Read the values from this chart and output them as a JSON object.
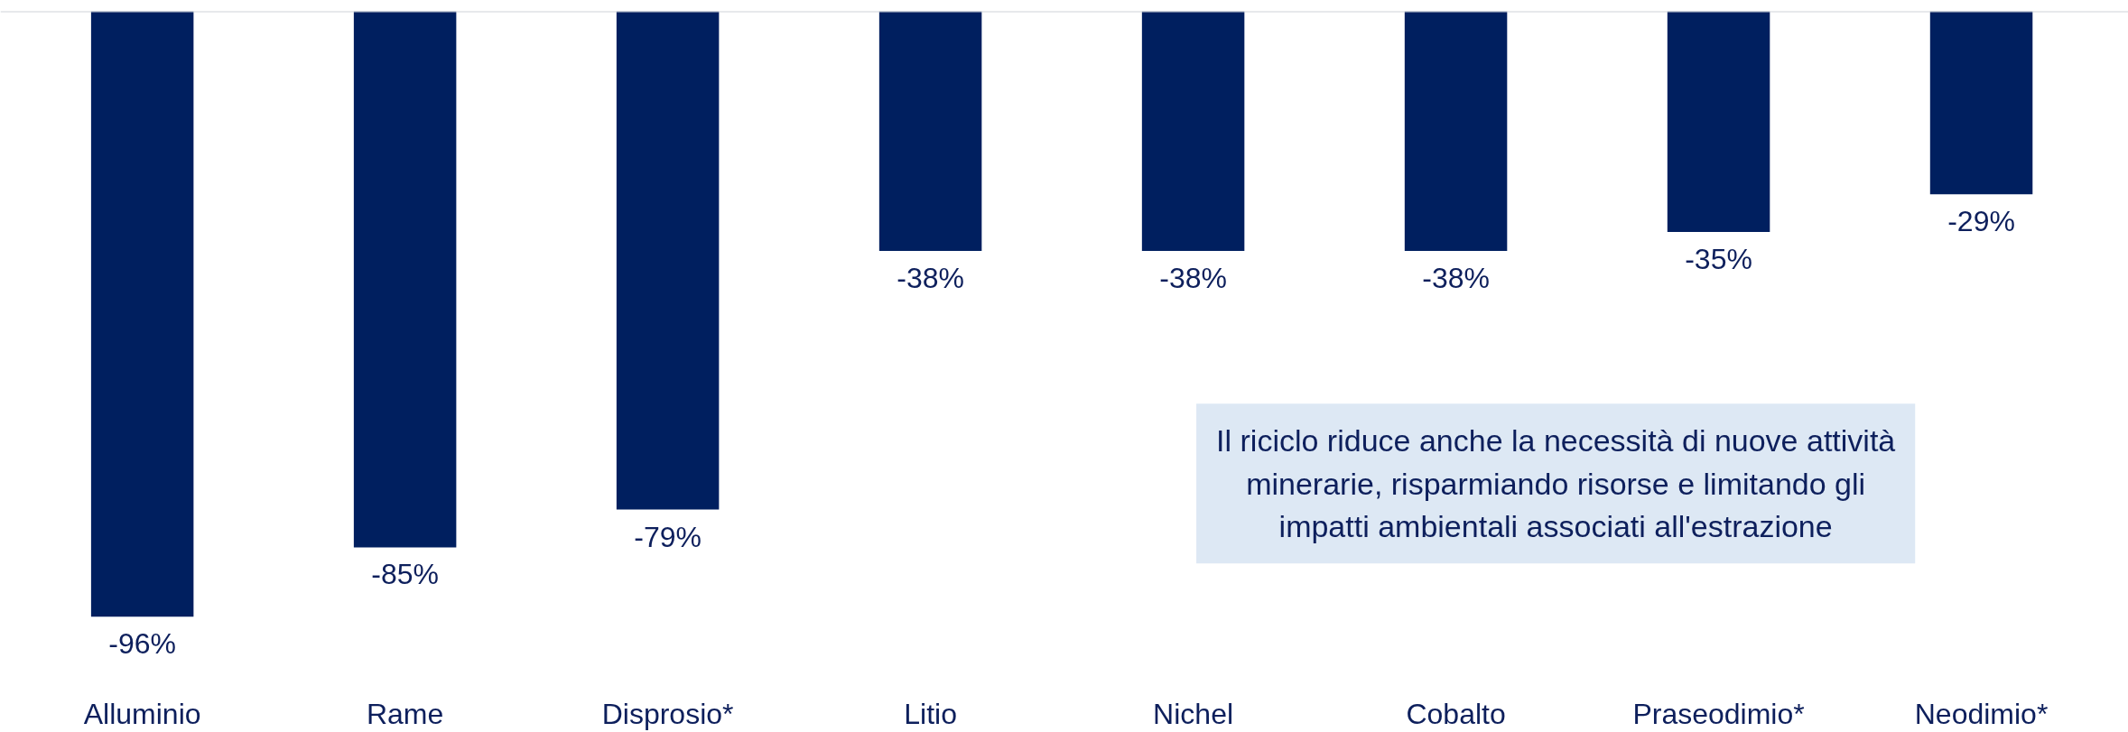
{
  "chart_data": {
    "type": "bar",
    "categories": [
      "Alluminio",
      "Rame",
      "Disprosio*",
      "Litio",
      "Nichel",
      "Cobalto",
      "Praseodimio*",
      "Neodimio*"
    ],
    "values": [
      -96,
      -85,
      -79,
      -38,
      -38,
      -38,
      -35,
      -29
    ],
    "value_labels": [
      "-96%",
      "-85%",
      "-79%",
      "-38%",
      "-38%",
      "-38%",
      "-35%",
      "-29%"
    ],
    "color": "#001f5f",
    "tick_labels": "x",
    "annotations": [
      "Il riciclo riduce anche la necessità di nuove attività minerarie, risparmiando risorse e limitando gli impatti ambientali associati all'estrazione"
    ]
  }
}
